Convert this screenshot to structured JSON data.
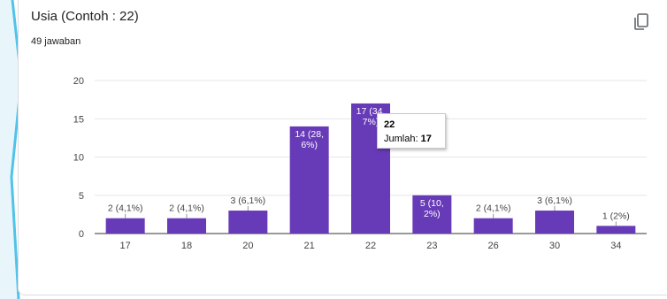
{
  "question": {
    "title": "Usia (Contoh : 22)",
    "response_count": "49 jawaban",
    "copy_icon": "copy-icon"
  },
  "colors": {
    "bar": "#673ab7",
    "grid": "#e6e6e6",
    "axis_text": "#444444",
    "decoration": "#4fc3e8"
  },
  "chart_data": {
    "type": "bar",
    "categories": [
      "17",
      "18",
      "20",
      "21",
      "22",
      "23",
      "26",
      "30",
      "34"
    ],
    "values": [
      2,
      2,
      3,
      14,
      17,
      5,
      2,
      3,
      1
    ],
    "data_labels": [
      [
        "2 (4,1%)"
      ],
      [
        "2 (4,1%)"
      ],
      [
        "3 (6,1%)"
      ],
      [
        "14 (28,",
        "6%)"
      ],
      [
        "17 (34,",
        "7%)"
      ],
      [
        "5 (10,",
        "2%)"
      ],
      [
        "2 (4,1%)"
      ],
      [
        "3 (6,1%)"
      ],
      [
        "1 (2%)"
      ]
    ],
    "y_ticks": [
      "0",
      "5",
      "10",
      "15",
      "20"
    ],
    "ylim": [
      0,
      20
    ],
    "grid": true,
    "highlighted_category": "22"
  },
  "tooltip": {
    "title": "22",
    "label": "Jumlah: ",
    "value": "17"
  }
}
